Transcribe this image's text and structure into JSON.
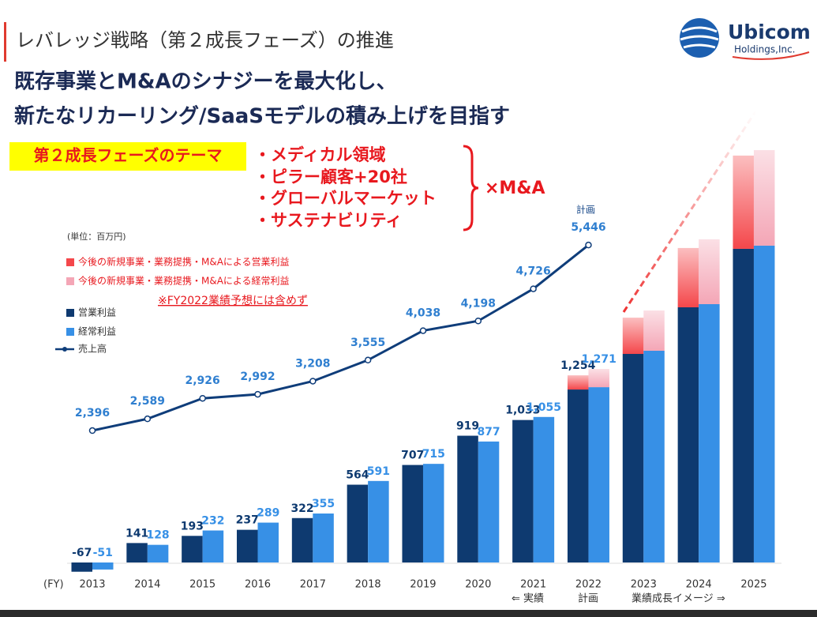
{
  "slide": {
    "title": "レバレッジ戦略（第２成長フェーズ）の推進",
    "headline": [
      "既存事業とM&Aのシナジーを最大化し、",
      "新たなリカーリング/SaaSモデルの積み上げを目指す"
    ],
    "theme_label": "第２成長フェーズのテーマ",
    "themes": [
      "・メディカル領域",
      "・ピラー顧客+20社",
      "・グローバルマーケット",
      "・サステナビリティ"
    ],
    "theme_suffix": "×M&A",
    "logo": {
      "name": "Ubicom",
      "sub": "Holdings,Inc."
    }
  },
  "chart_data": {
    "type": "bar",
    "categories": [
      "2013",
      "2014",
      "2015",
      "2016",
      "2017",
      "2018",
      "2019",
      "2020",
      "2021",
      "2022",
      "2023",
      "2024",
      "2025"
    ],
    "series": [
      {
        "name": "今後の新規事業・業務提携・M&Aによる営業利益",
        "color": "#f4474b",
        "values": [
          null,
          null,
          null,
          null,
          null,
          null,
          null,
          null,
          null,
          103,
          263,
          430,
          676
        ]
      },
      {
        "name": "今後の新規事業・業務提携・M&Aによる経常利益",
        "color": "#f4a6b6",
        "values": [
          null,
          null,
          null,
          null,
          null,
          null,
          null,
          null,
          null,
          132,
          292,
          470,
          693
        ]
      },
      {
        "name": "営業利益",
        "color": "#0e3a70",
        "values": [
          -67,
          141,
          193,
          237,
          322,
          564,
          707,
          919,
          1033,
          1254,
          1512,
          1850,
          2274
        ],
        "value_labels": [
          "-67",
          "141",
          "193",
          "237",
          "322",
          "564",
          "707",
          "919",
          "1,033",
          "1,254",
          null,
          null,
          null
        ]
      },
      {
        "name": "経常利益",
        "color": "#3790e6",
        "values": [
          -51,
          128,
          232,
          289,
          355,
          591,
          715,
          877,
          1055,
          1271,
          1535,
          1873,
          2297
        ],
        "value_labels": [
          "-51",
          "128",
          "232",
          "289",
          "355",
          "591",
          "715",
          "877",
          "1,055",
          "1,271",
          null,
          null,
          null
        ]
      },
      {
        "name": "売上高",
        "type": "line",
        "color": "#0f3d7a",
        "values": [
          2396,
          2589,
          2926,
          2992,
          3208,
          3555,
          4038,
          4198,
          4726,
          5446,
          null,
          null,
          null
        ],
        "value_labels": [
          "2,396",
          "2,589",
          "2,926",
          "2,992",
          "3,208",
          "3,555",
          "4,038",
          "4,198",
          "4,726",
          "5,446",
          null,
          null,
          null
        ]
      }
    ],
    "annotations": [
      "(単位：百万円)",
      "※FY2022業績予想には含めず",
      "計画",
      "(FY)",
      "⇐ 実績",
      "計画",
      "業績成長イメージ ⇒"
    ]
  }
}
